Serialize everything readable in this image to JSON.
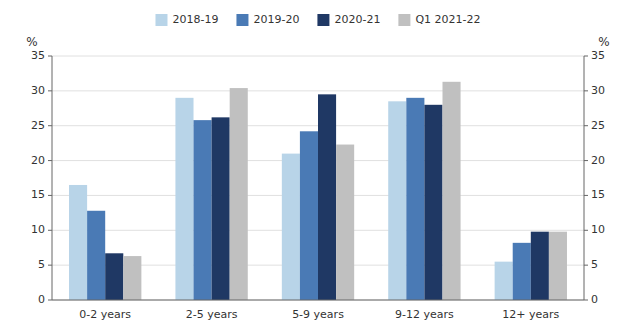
{
  "chart_data": {
    "type": "bar",
    "categories": [
      "0-2 years",
      "2-5 years",
      "5-9 years",
      "9-12 years",
      "12+ years"
    ],
    "series": [
      {
        "name": "2018-19",
        "color": "#b8d4e8",
        "values": [
          16.5,
          29.0,
          21.0,
          28.5,
          5.5
        ]
      },
      {
        "name": "2019-20",
        "color": "#4a7ab5",
        "values": [
          12.8,
          25.8,
          24.2,
          29.0,
          8.2
        ]
      },
      {
        "name": "2020-21",
        "color": "#1f3864",
        "values": [
          6.7,
          26.2,
          29.5,
          28.0,
          9.8
        ]
      },
      {
        "name": "Q1 2021-22",
        "color": "#c0c0c0",
        "values": [
          6.3,
          30.4,
          22.3,
          31.3,
          9.8
        ]
      }
    ],
    "ylabel": "%",
    "y2label": "%",
    "ylim": [
      0,
      35
    ],
    "yticks": [
      0,
      5,
      10,
      15,
      20,
      25,
      30,
      35
    ],
    "y2lim": [
      0,
      35
    ],
    "y2ticks": [
      0,
      5,
      10,
      15,
      20,
      25,
      30,
      35
    ],
    "grid": true,
    "legend": "top"
  }
}
